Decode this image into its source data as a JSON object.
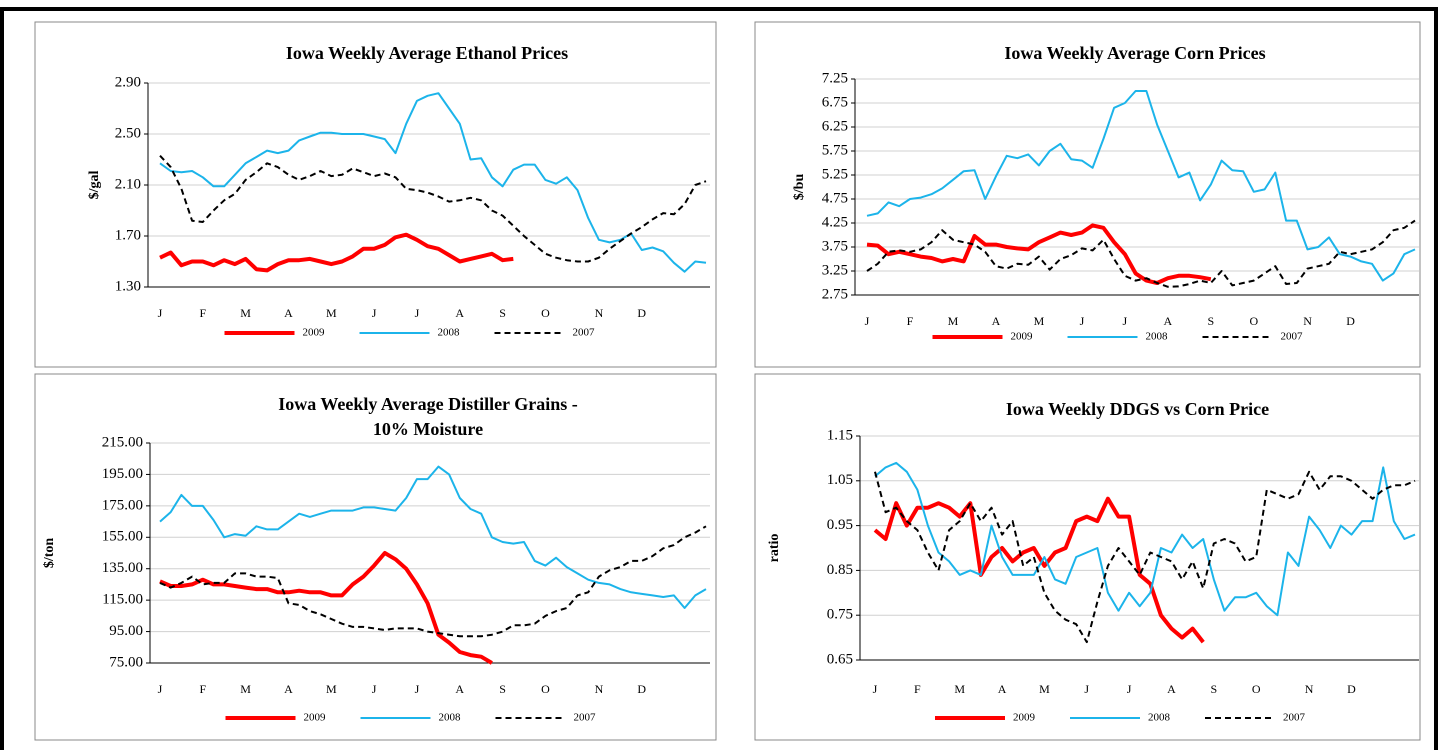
{
  "chart_data": [
    {
      "type": "line",
      "title": [
        "Iowa Weekly Average Ethanol Prices"
      ],
      "ylabel": "$/gal",
      "categories": [
        "J",
        null,
        null,
        null,
        "F",
        null,
        null,
        null,
        "M",
        null,
        null,
        null,
        "A",
        null,
        null,
        null,
        "M",
        null,
        null,
        null,
        "J",
        null,
        null,
        null,
        "J",
        null,
        null,
        null,
        "A",
        null,
        null,
        null,
        "S",
        null,
        null,
        null,
        "O",
        null,
        null,
        null,
        null,
        "N",
        null,
        null,
        null,
        "D",
        null,
        null,
        null,
        null,
        null,
        null
      ],
      "ylim": [
        1.3,
        2.9
      ],
      "yticks": [
        {
          "value": 1.3,
          "label": "1.30"
        },
        {
          "value": 1.7,
          "label": "1.70"
        },
        {
          "value": 2.1,
          "label": "2.10"
        },
        {
          "value": 2.5,
          "label": "2.50"
        },
        {
          "value": 2.9,
          "label": "2.90"
        }
      ],
      "grid": true,
      "legend": "bottom",
      "series": [
        {
          "name": "2009",
          "color": "#ff0000",
          "line_width": 4,
          "dash": "solid",
          "values": [
            1.53,
            1.57,
            1.47,
            1.5,
            1.5,
            1.47,
            1.51,
            1.48,
            1.52,
            1.44,
            1.43,
            1.48,
            1.51,
            1.51,
            1.52,
            1.5,
            1.48,
            1.5,
            1.54,
            1.6,
            1.6,
            1.63,
            1.69,
            1.71,
            1.67,
            1.62,
            1.6,
            1.55,
            1.5,
            1.52,
            1.54,
            1.56,
            1.51,
            1.52,
            null,
            null,
            null,
            null,
            null,
            null,
            null,
            null,
            null,
            null,
            null,
            null,
            null,
            null,
            null,
            null,
            null,
            null
          ]
        },
        {
          "name": "2008",
          "color": "#1cb4ea",
          "line_width": 2,
          "dash": "solid",
          "values": [
            2.27,
            2.21,
            2.2,
            2.21,
            2.16,
            2.09,
            2.09,
            2.18,
            2.27,
            2.32,
            2.37,
            2.35,
            2.37,
            2.45,
            2.48,
            2.51,
            2.51,
            2.5,
            2.5,
            2.5,
            2.48,
            2.46,
            2.35,
            2.58,
            2.76,
            2.8,
            2.82,
            2.7,
            2.58,
            2.3,
            2.31,
            2.16,
            2.09,
            2.22,
            2.26,
            2.26,
            2.14,
            2.11,
            2.16,
            2.06,
            1.84,
            1.67,
            1.65,
            1.67,
            1.72,
            1.59,
            1.61,
            1.58,
            1.49,
            1.42,
            1.5,
            1.49
          ]
        },
        {
          "name": "2007",
          "color": "#000000",
          "line_width": 2,
          "dash": "dashed",
          "values": [
            2.33,
            2.24,
            2.07,
            1.82,
            1.81,
            1.9,
            1.98,
            2.03,
            2.14,
            2.2,
            2.27,
            2.24,
            2.18,
            2.14,
            2.17,
            2.21,
            2.17,
            2.18,
            2.23,
            2.2,
            2.17,
            2.19,
            2.16,
            2.07,
            2.06,
            2.04,
            2.01,
            1.97,
            1.98,
            2.0,
            1.98,
            1.9,
            1.86,
            1.78,
            1.7,
            1.63,
            1.56,
            1.53,
            1.51,
            1.5,
            1.5,
            1.53,
            1.6,
            1.66,
            1.72,
            1.77,
            1.83,
            1.88,
            1.87,
            1.95,
            2.1,
            2.13
          ]
        }
      ]
    },
    {
      "type": "line",
      "title": [
        "Iowa Weekly Average Corn Prices"
      ],
      "ylabel": "$/bu",
      "categories": [
        "J",
        null,
        null,
        null,
        "F",
        null,
        null,
        null,
        "M",
        null,
        null,
        null,
        "A",
        null,
        null,
        null,
        "M",
        null,
        null,
        null,
        "J",
        null,
        null,
        null,
        "J",
        null,
        null,
        null,
        "A",
        null,
        null,
        null,
        "S",
        null,
        null,
        null,
        "O",
        null,
        null,
        null,
        null,
        "N",
        null,
        null,
        null,
        "D",
        null,
        null,
        null,
        null,
        null,
        null
      ],
      "ylim": [
        2.75,
        7.25
      ],
      "yticks": [
        2.75,
        3.25,
        3.75,
        4.25,
        4.75,
        5.25,
        5.75,
        6.25,
        6.75,
        7.25
      ],
      "grid": true,
      "legend": "bottom",
      "series": [
        {
          "name": "2009",
          "color": "#ff0000",
          "line_width": 4,
          "dash": "solid",
          "values": [
            3.8,
            3.78,
            3.6,
            3.65,
            3.6,
            3.55,
            3.52,
            3.45,
            3.5,
            3.45,
            3.98,
            3.8,
            3.8,
            3.75,
            3.72,
            3.7,
            3.85,
            3.95,
            4.05,
            4.0,
            4.05,
            4.2,
            4.15,
            3.85,
            3.6,
            3.2,
            3.05,
            3.0,
            3.1,
            3.15,
            3.15,
            3.12,
            3.08,
            null,
            null,
            null,
            null,
            null,
            null,
            null,
            null,
            null,
            null,
            null,
            null,
            null,
            null,
            null,
            null,
            null,
            null,
            null
          ]
        },
        {
          "name": "2008",
          "color": "#1cb4ea",
          "line_width": 2,
          "dash": "solid",
          "values": [
            4.4,
            4.45,
            4.68,
            4.6,
            4.75,
            4.78,
            4.85,
            4.97,
            5.15,
            5.33,
            5.35,
            4.75,
            5.22,
            5.65,
            5.6,
            5.68,
            5.45,
            5.75,
            5.9,
            5.58,
            5.55,
            5.4,
            6.0,
            6.65,
            6.75,
            7.0,
            7.0,
            6.3,
            5.75,
            5.2,
            5.3,
            4.72,
            5.05,
            5.55,
            5.35,
            5.33,
            4.9,
            4.95,
            5.3,
            4.3,
            4.3,
            3.7,
            3.75,
            3.95,
            3.6,
            3.55,
            3.45,
            3.4,
            3.05,
            3.2,
            3.6,
            3.7
          ]
        },
        {
          "name": "2007",
          "color": "#000000",
          "line_width": 2,
          "dash": "dashed",
          "values": [
            3.25,
            3.4,
            3.65,
            3.68,
            3.65,
            3.7,
            3.85,
            4.1,
            3.9,
            3.85,
            3.8,
            3.65,
            3.35,
            3.3,
            3.4,
            3.38,
            3.55,
            3.28,
            3.5,
            3.58,
            3.72,
            3.68,
            3.9,
            3.5,
            3.15,
            3.05,
            3.1,
            3.0,
            2.92,
            2.93,
            2.98,
            3.05,
            3.0,
            3.25,
            2.95,
            3.0,
            3.05,
            3.2,
            3.35,
            2.98,
            3.0,
            3.3,
            3.35,
            3.4,
            3.65,
            3.6,
            3.65,
            3.7,
            3.85,
            4.1,
            4.15,
            4.3
          ]
        }
      ]
    },
    {
      "type": "line",
      "title": [
        "Iowa Weekly Average Distiller Grains -",
        "10% Moisture"
      ],
      "ylabel": "$/ton",
      "categories": [
        "J",
        null,
        null,
        null,
        "F",
        null,
        null,
        null,
        "M",
        null,
        null,
        null,
        "A",
        null,
        null,
        null,
        "M",
        null,
        null,
        null,
        "J",
        null,
        null,
        null,
        "J",
        null,
        null,
        null,
        "A",
        null,
        null,
        null,
        "S",
        null,
        null,
        null,
        "O",
        null,
        null,
        null,
        null,
        "N",
        null,
        null,
        null,
        "D",
        null,
        null,
        null,
        null,
        null,
        null
      ],
      "ylim": [
        75,
        215
      ],
      "yticks": [
        {
          "value": 75,
          "label": "75.00"
        },
        {
          "value": 95,
          "label": "95.00"
        },
        {
          "value": 115,
          "label": "115.00"
        },
        {
          "value": 135,
          "label": "135.00"
        },
        {
          "value": 155,
          "label": "155.00"
        },
        {
          "value": 175,
          "label": "175.00"
        },
        {
          "value": 195,
          "label": "195.00"
        },
        {
          "value": 215,
          "label": "215.00"
        }
      ],
      "grid": true,
      "legend": "bottom",
      "series": [
        {
          "name": "2009",
          "color": "#ff0000",
          "line_width": 4,
          "dash": "solid",
          "values": [
            127,
            124,
            124,
            125,
            128,
            125,
            125,
            124,
            123,
            122,
            122,
            120,
            120,
            121,
            120,
            120,
            118,
            118,
            125,
            130,
            137,
            145,
            141,
            135,
            125,
            113,
            93,
            88,
            82,
            80,
            79,
            75,
            null,
            null,
            null,
            null,
            null,
            null,
            null,
            null,
            null,
            null,
            null,
            null,
            null,
            null,
            null,
            null,
            null,
            null,
            null,
            null
          ]
        },
        {
          "name": "2008",
          "color": "#1cb4ea",
          "line_width": 2,
          "dash": "solid",
          "values": [
            165,
            171,
            182,
            175,
            175,
            166,
            155,
            157,
            156,
            162,
            160,
            160,
            165,
            170,
            168,
            170,
            172,
            172,
            172,
            174,
            174,
            173,
            172,
            180,
            192,
            192,
            200,
            195,
            180,
            173,
            170,
            155,
            152,
            151,
            152,
            140,
            137,
            142,
            136,
            132,
            128,
            126,
            125,
            122,
            120,
            119,
            118,
            117,
            118,
            110,
            118,
            122
          ]
        },
        {
          "name": "2007",
          "color": "#000000",
          "line_width": 2,
          "dash": "dashed",
          "values": [
            126,
            123,
            126,
            130,
            125,
            126,
            126,
            132,
            132,
            130,
            130,
            129,
            113,
            112,
            108,
            106,
            103,
            100,
            98,
            98,
            97,
            96,
            97,
            97,
            97,
            95,
            94,
            93,
            92,
            92,
            92,
            93,
            95,
            99,
            99,
            100,
            105,
            108,
            110,
            118,
            120,
            130,
            134,
            136,
            140,
            140,
            143,
            148,
            150,
            155,
            158,
            162
          ]
        }
      ]
    },
    {
      "type": "line",
      "title": [
        "Iowa Weekly DDGS vs Corn Price"
      ],
      "ylabel": "ratio",
      "categories": [
        "J",
        null,
        null,
        null,
        "F",
        null,
        null,
        null,
        "M",
        null,
        null,
        null,
        "A",
        null,
        null,
        null,
        "M",
        null,
        null,
        null,
        "J",
        null,
        null,
        null,
        "J",
        null,
        null,
        null,
        "A",
        null,
        null,
        null,
        "S",
        null,
        null,
        null,
        "O",
        null,
        null,
        null,
        null,
        "N",
        null,
        null,
        null,
        "D",
        null,
        null,
        null,
        null,
        null,
        null
      ],
      "ylim": [
        0.65,
        1.15
      ],
      "yticks": [
        0.65,
        0.75,
        0.85,
        0.95,
        1.05,
        1.15
      ],
      "grid": true,
      "legend": "bottom",
      "series": [
        {
          "name": "2009",
          "color": "#ff0000",
          "line_width": 4,
          "dash": "solid",
          "values": [
            0.94,
            0.92,
            1.0,
            0.95,
            0.99,
            0.99,
            1.0,
            0.99,
            0.97,
            1.0,
            0.84,
            0.88,
            0.9,
            0.87,
            0.89,
            0.9,
            0.86,
            0.89,
            0.9,
            0.96,
            0.97,
            0.96,
            1.01,
            0.97,
            0.97,
            0.84,
            0.82,
            0.75,
            0.72,
            0.7,
            0.72,
            0.69,
            null,
            null,
            null,
            null,
            null,
            null,
            null,
            null,
            null,
            null,
            null,
            null,
            null,
            null,
            null,
            null,
            null,
            null,
            null,
            null
          ]
        },
        {
          "name": "2008",
          "color": "#1cb4ea",
          "line_width": 2,
          "dash": "solid",
          "values": [
            1.06,
            1.08,
            1.09,
            1.07,
            1.03,
            0.95,
            0.89,
            0.87,
            0.84,
            0.85,
            0.84,
            0.95,
            0.88,
            0.84,
            0.84,
            0.84,
            0.88,
            0.83,
            0.82,
            0.88,
            0.89,
            0.9,
            0.8,
            0.76,
            0.8,
            0.77,
            0.8,
            0.9,
            0.89,
            0.93,
            0.9,
            0.92,
            0.83,
            0.76,
            0.79,
            0.79,
            0.8,
            0.77,
            0.75,
            0.89,
            0.86,
            0.97,
            0.94,
            0.9,
            0.95,
            0.93,
            0.96,
            0.96,
            1.08,
            0.96,
            0.92,
            0.93
          ]
        },
        {
          "name": "2007",
          "color": "#000000",
          "line_width": 2,
          "dash": "dashed",
          "values": [
            1.07,
            0.98,
            0.99,
            0.96,
            0.94,
            0.89,
            0.85,
            0.94,
            0.96,
            1.0,
            0.96,
            0.99,
            0.93,
            0.96,
            0.86,
            0.88,
            0.8,
            0.76,
            0.74,
            0.73,
            0.69,
            0.78,
            0.86,
            0.9,
            0.87,
            0.84,
            0.89,
            0.88,
            0.87,
            0.83,
            0.87,
            0.81,
            0.91,
            0.92,
            0.91,
            0.87,
            0.88,
            1.03,
            1.02,
            1.01,
            1.02,
            1.07,
            1.03,
            1.06,
            1.06,
            1.05,
            1.03,
            1.01,
            1.03,
            1.04,
            1.04,
            1.05
          ]
        }
      ]
    }
  ]
}
